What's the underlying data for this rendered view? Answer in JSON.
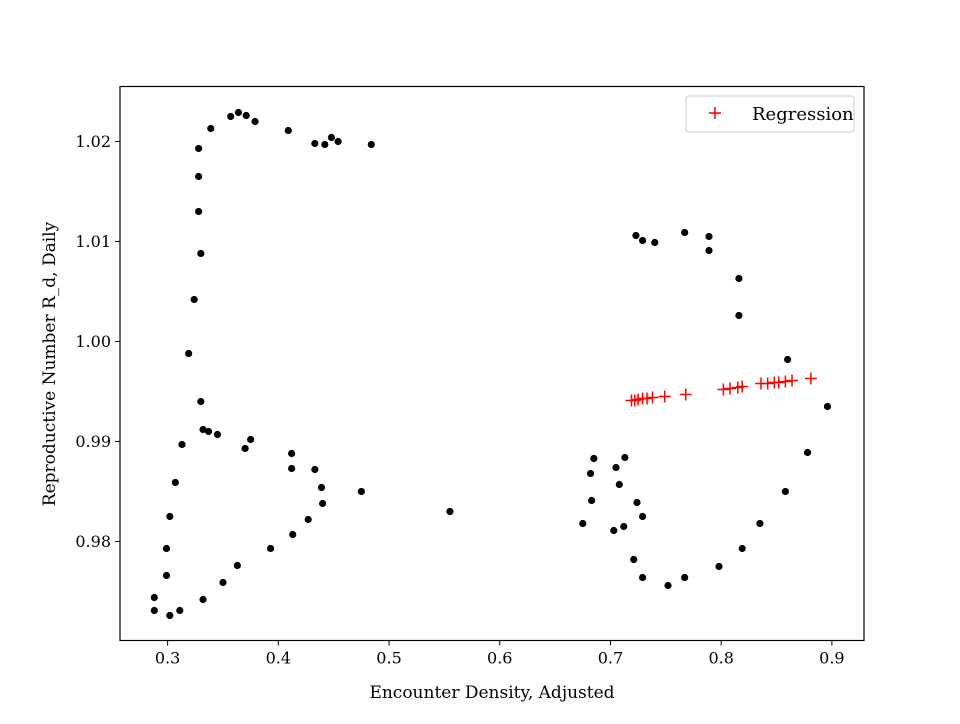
{
  "chart_data": {
    "type": "scatter",
    "xlabel": "Encounter Density, Adjusted",
    "ylabel": "Reproductive Number R_d, Daily",
    "xlim": [
      0.257,
      0.929
    ],
    "ylim": [
      0.9701,
      1.0255
    ],
    "xticks": [
      0.3,
      0.4,
      0.5,
      0.6,
      0.7,
      0.8,
      0.9
    ],
    "xtick_labels": [
      "0.3",
      "0.4",
      "0.5",
      "0.6",
      "0.7",
      "0.8",
      "0.9"
    ],
    "yticks": [
      0.98,
      0.99,
      1.0,
      1.01,
      1.02
    ],
    "ytick_labels": [
      "0.98",
      "0.99",
      "1.00",
      "1.01",
      "1.02"
    ],
    "grid": false,
    "legend": {
      "placement": "top-right",
      "entries": [
        {
          "label": "Regression",
          "marker": "plus",
          "color": "#ff0000"
        }
      ]
    },
    "series": [
      {
        "marker": "dot",
        "color": "#000000",
        "points": [
          [
            0.288,
            0.9744
          ],
          [
            0.288,
            0.9731
          ],
          [
            0.302,
            0.9726
          ],
          [
            0.311,
            0.9731
          ],
          [
            0.299,
            0.9766
          ],
          [
            0.299,
            0.9793
          ],
          [
            0.302,
            0.9825
          ],
          [
            0.307,
            0.9859
          ],
          [
            0.313,
            0.9897
          ],
          [
            0.319,
            0.9988
          ],
          [
            0.324,
            1.0042
          ],
          [
            0.328,
            1.013
          ],
          [
            0.328,
            1.0165
          ],
          [
            0.33,
            1.0088
          ],
          [
            0.328,
            1.0193
          ],
          [
            0.339,
            1.0213
          ],
          [
            0.357,
            1.0225
          ],
          [
            0.364,
            1.0229
          ],
          [
            0.371,
            1.0226
          ],
          [
            0.379,
            1.022
          ],
          [
            0.409,
            1.0211
          ],
          [
            0.433,
            1.0198
          ],
          [
            0.442,
            1.0197
          ],
          [
            0.448,
            1.0204
          ],
          [
            0.454,
            1.02
          ],
          [
            0.484,
            1.0197
          ],
          [
            0.33,
            0.994
          ],
          [
            0.332,
            0.9912
          ],
          [
            0.337,
            0.991
          ],
          [
            0.345,
            0.9907
          ],
          [
            0.37,
            0.9893
          ],
          [
            0.375,
            0.9902
          ],
          [
            0.412,
            0.9888
          ],
          [
            0.412,
            0.9873
          ],
          [
            0.433,
            0.9872
          ],
          [
            0.439,
            0.9854
          ],
          [
            0.44,
            0.9838
          ],
          [
            0.427,
            0.9822
          ],
          [
            0.413,
            0.9807
          ],
          [
            0.393,
            0.9793
          ],
          [
            0.363,
            0.9776
          ],
          [
            0.35,
            0.9759
          ],
          [
            0.332,
            0.9742
          ],
          [
            0.475,
            0.985
          ],
          [
            0.555,
            0.983
          ],
          [
            0.675,
            0.9818
          ],
          [
            0.682,
            0.9868
          ],
          [
            0.685,
            0.9883
          ],
          [
            0.683,
            0.9841
          ],
          [
            0.703,
            0.9811
          ],
          [
            0.705,
            0.9874
          ],
          [
            0.708,
            0.9857
          ],
          [
            0.713,
            0.9884
          ],
          [
            0.712,
            0.9815
          ],
          [
            0.724,
            0.9839
          ],
          [
            0.729,
            0.9825
          ],
          [
            0.721,
            0.9782
          ],
          [
            0.729,
            0.9764
          ],
          [
            0.752,
            0.9756
          ],
          [
            0.767,
            0.9764
          ],
          [
            0.798,
            0.9775
          ],
          [
            0.819,
            0.9793
          ],
          [
            0.835,
            0.9818
          ],
          [
            0.858,
            0.985
          ],
          [
            0.878,
            0.9889
          ],
          [
            0.896,
            0.9935
          ],
          [
            0.86,
            0.9982
          ],
          [
            0.816,
            1.0026
          ],
          [
            0.816,
            1.0063
          ],
          [
            0.789,
            1.0091
          ],
          [
            0.789,
            1.0105
          ],
          [
            0.767,
            1.0109
          ],
          [
            0.74,
            1.0099
          ],
          [
            0.729,
            1.0101
          ],
          [
            0.723,
            1.0106
          ]
        ]
      },
      {
        "name": "Regression",
        "marker": "plus",
        "color": "#ff0000",
        "points": [
          [
            0.719,
            0.9941
          ],
          [
            0.722,
            0.9941
          ],
          [
            0.725,
            0.9942
          ],
          [
            0.729,
            0.9943
          ],
          [
            0.733,
            0.9943
          ],
          [
            0.738,
            0.9944
          ],
          [
            0.749,
            0.9945
          ],
          [
            0.768,
            0.9947
          ],
          [
            0.802,
            0.9952
          ],
          [
            0.808,
            0.9953
          ],
          [
            0.815,
            0.9954
          ],
          [
            0.819,
            0.9955
          ],
          [
            0.836,
            0.9958
          ],
          [
            0.842,
            0.9958
          ],
          [
            0.848,
            0.9959
          ],
          [
            0.852,
            0.9959
          ],
          [
            0.858,
            0.996
          ],
          [
            0.864,
            0.9961
          ],
          [
            0.881,
            0.9963
          ]
        ]
      }
    ]
  }
}
